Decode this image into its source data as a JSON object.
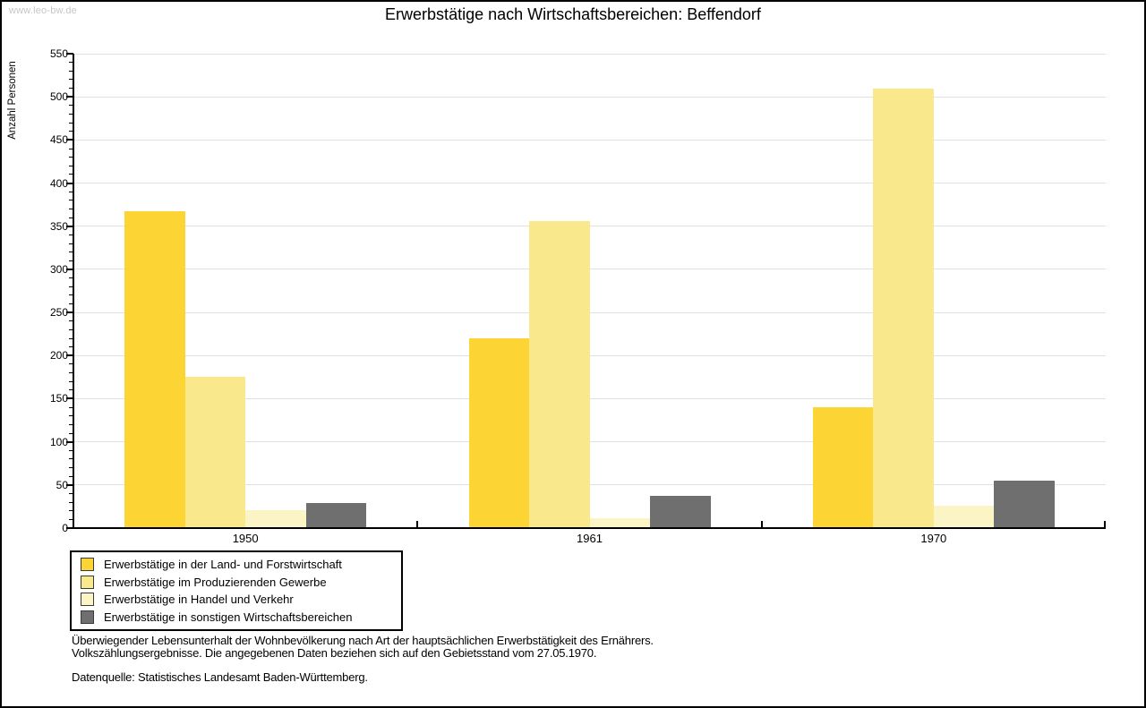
{
  "watermark": "www.leo-bw.de",
  "title": "Erwerbstätige nach Wirtschaftsbereichen: Beffendorf",
  "chart_data": {
    "type": "bar",
    "title": "Erwerbstätige nach Wirtschaftsbereichen: Beffendorf",
    "xlabel": "",
    "ylabel": "Anzahl Personen",
    "categories": [
      "1950",
      "1961",
      "1970"
    ],
    "series": [
      {
        "name": "Erwerbstätige in der Land- und Forstwirtschaft",
        "color": "#FCD535",
        "values": [
          367,
          220,
          140
        ]
      },
      {
        "name": "Erwerbstätige im Produzierenden Gewerbe",
        "color": "#FAE98C",
        "values": [
          175,
          356,
          510
        ]
      },
      {
        "name": "Erwerbstätige in Handel und Verkehr",
        "color": "#FBF5C6",
        "values": [
          21,
          11,
          26
        ]
      },
      {
        "name": "Erwerbstätige in sonstigen Wirtschaftsbereichen",
        "color": "#6F6F6F",
        "values": [
          29,
          37,
          55
        ]
      }
    ],
    "ylim": [
      0,
      550
    ],
    "yticks": [
      0,
      50,
      100,
      150,
      200,
      250,
      300,
      350,
      400,
      450,
      500,
      550
    ],
    "minor_tick_step": 10,
    "grid": "horizontal-major",
    "gridline_color": "#e0e0e0",
    "legend_position": "bottom-left"
  },
  "footer": {
    "line1": "Überwiegender Lebensunterhalt der Wohnbevölkerung nach Art der hauptsächlichen Erwerbstätigkeit des Ernährers.",
    "line2": "Volkszählungsergebnisse. Die angegebenen Daten beziehen sich auf den Gebietsstand vom 27.05.1970.",
    "line3": "Datenquelle: Statistisches Landesamt Baden-Württemberg."
  }
}
